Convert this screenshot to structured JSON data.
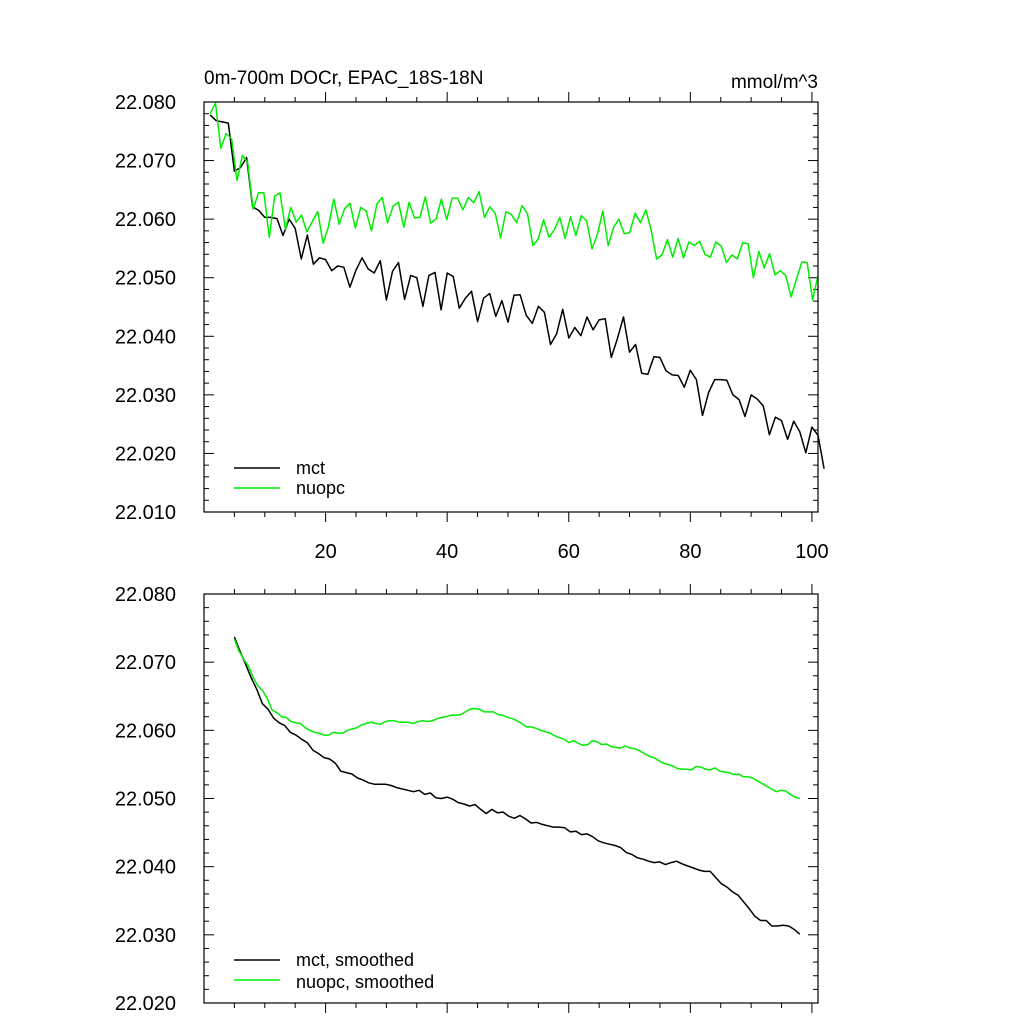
{
  "colors": {
    "mct": "#000000",
    "nuopc": "#00ee00",
    "frame": "#000000",
    "background": "#ffffff"
  },
  "chart_data": [
    {
      "type": "line",
      "title": "0m-700m DOCr, EPAC_18S-18N",
      "units_label": "mmol/m^3",
      "xlabel": "",
      "ylabel": "",
      "xlim": [
        0,
        101
      ],
      "ylim": [
        22.01,
        22.08
      ],
      "y_ticks": [
        22.01,
        22.02,
        22.03,
        22.04,
        22.05,
        22.06,
        22.07,
        22.08
      ],
      "y_tick_labels": [
        "22.010",
        "22.020",
        "22.030",
        "22.040",
        "22.050",
        "22.060",
        "22.070",
        "22.080"
      ],
      "x_ticks": [
        20,
        40,
        60,
        80,
        100
      ],
      "x_tick_labels": [
        "20",
        "40",
        "60",
        "80",
        "100"
      ],
      "legend_position": "bottom-left",
      "series": [
        {
          "name": "mct",
          "color": "#000000",
          "x_start": 1,
          "values": [
            22.0778,
            22.0768,
            22.0766,
            22.0764,
            22.0682,
            22.0688,
            22.0705,
            22.0621,
            22.0615,
            22.0603,
            22.0603,
            22.0601,
            22.0572,
            22.06,
            22.0584,
            22.0532,
            22.0573,
            22.0523,
            22.0534,
            22.0531,
            22.0512,
            22.052,
            22.0518,
            22.0484,
            22.0513,
            22.0534,
            22.0515,
            22.0508,
            22.0529,
            22.0462,
            22.0511,
            22.0526,
            22.0463,
            22.0504,
            22.05,
            22.0451,
            22.0504,
            22.0509,
            22.0445,
            22.0508,
            22.0502,
            22.0448,
            22.0465,
            22.0477,
            22.0425,
            22.0465,
            22.0473,
            22.0434,
            22.0461,
            22.0424,
            22.047,
            22.0471,
            22.0436,
            22.0422,
            22.0451,
            22.0441,
            22.0386,
            22.0404,
            22.0446,
            22.0397,
            22.0415,
            22.0401,
            22.0433,
            22.0411,
            22.0428,
            22.043,
            22.0364,
            22.0396,
            22.0433,
            22.0373,
            22.0386,
            22.0337,
            22.0335,
            22.0365,
            22.0364,
            22.0341,
            22.0334,
            22.0333,
            22.0313,
            22.0342,
            22.0326,
            22.0265,
            22.0304,
            22.0326,
            22.0326,
            22.0325,
            22.03,
            22.0292,
            22.0263,
            22.03,
            22.0293,
            22.0281,
            22.0232,
            22.0262,
            22.0256,
            22.0224,
            22.0255,
            22.0237,
            22.0201,
            22.0245,
            22.0231,
            22.0174
          ]
        },
        {
          "name": "nuopc",
          "color": "#00ee00",
          "x_start": 1,
          "values": [
            22.078,
            22.0798,
            22.0721,
            22.0746,
            22.0737,
            22.0666,
            22.0709,
            22.0697,
            22.0617,
            22.0645,
            22.0645,
            22.0569,
            22.0639,
            22.0645,
            22.0583,
            22.062,
            22.0595,
            22.0607,
            22.0578,
            22.0596,
            22.0613,
            22.0559,
            22.0587,
            22.0634,
            22.0591,
            22.0618,
            22.0627,
            22.0585,
            22.062,
            22.0614,
            22.058,
            22.0626,
            22.0637,
            22.0594,
            22.0622,
            22.0629,
            22.0586,
            22.0629,
            22.0602,
            22.0603,
            22.0638,
            22.0593,
            22.06,
            22.0634,
            22.0599,
            22.0636,
            22.0636,
            22.0616,
            22.0637,
            22.0628,
            22.0647,
            22.0603,
            22.0621,
            22.061,
            22.0568,
            22.0613,
            22.0608,
            22.0594,
            22.0623,
            22.0609,
            22.0555,
            22.0566,
            22.0599,
            22.0569,
            22.0582,
            22.0603,
            22.0567,
            22.0604,
            22.0572,
            22.0606,
            22.0597,
            22.0549,
            22.0574,
            22.0614,
            22.0555,
            22.0586,
            22.06,
            22.0575,
            22.0577,
            22.061,
            22.0594,
            22.0616,
            22.0581,
            22.0532,
            22.0539,
            22.0565,
            22.0535,
            22.0567,
            22.0534,
            22.0561,
            22.0555,
            22.0562,
            22.054,
            22.0535,
            22.0561,
            22.0554,
            22.0526,
            22.0539,
            22.0532,
            22.056,
            22.0558,
            22.05,
            22.0545,
            22.0517,
            22.0541,
            22.0505,
            22.0512,
            22.0504,
            22.0467,
            22.0498,
            22.0527,
            22.0526,
            22.0462,
            22.0504
          ]
        }
      ]
    },
    {
      "type": "line",
      "title": "",
      "xlabel": "",
      "ylabel": "",
      "xlim": [
        0,
        101
      ],
      "ylim": [
        22.02,
        22.08
      ],
      "y_ticks": [
        22.02,
        22.03,
        22.04,
        22.05,
        22.06,
        22.07,
        22.08
      ],
      "y_tick_labels": [
        "22.020",
        "22.030",
        "22.040",
        "22.050",
        "22.060",
        "22.070",
        "22.080"
      ],
      "x_ticks": [
        20,
        40,
        60,
        80,
        100
      ],
      "x_tick_labels": [],
      "legend_position": "bottom-left",
      "series": [
        {
          "name": "mct, smoothed",
          "color": "#000000",
          "x_start": 5,
          "values": [
            22.0737,
            22.0716,
            22.0697,
            22.0677,
            22.066,
            22.0639,
            22.0631,
            22.0618,
            22.0611,
            22.0607,
            22.0597,
            22.0593,
            22.0587,
            22.0582,
            22.0571,
            22.0566,
            22.056,
            22.0558,
            22.0552,
            22.054,
            22.0538,
            22.0536,
            22.053,
            22.0527,
            22.0523,
            22.0521,
            22.0521,
            22.0521,
            22.0519,
            22.0516,
            22.0514,
            22.0512,
            22.051,
            22.0512,
            22.0506,
            22.0508,
            22.0501,
            22.05,
            22.0502,
            22.0499,
            22.0494,
            22.0492,
            22.0489,
            22.0491,
            22.0484,
            22.0478,
            22.0484,
            22.0479,
            22.048,
            22.0474,
            22.0471,
            22.0475,
            22.047,
            22.0464,
            22.0465,
            22.0462,
            22.046,
            22.0458,
            22.0458,
            22.0457,
            22.0451,
            22.0452,
            22.0447,
            22.0448,
            22.0444,
            22.0438,
            22.0435,
            22.0433,
            22.0431,
            22.0428,
            22.0421,
            22.0418,
            22.0413,
            22.0411,
            22.0408,
            22.0406,
            22.0407,
            22.0403,
            22.0406,
            22.0408,
            22.0404,
            22.0401,
            22.0398,
            22.0395,
            22.0393,
            22.0393,
            22.0384,
            22.0375,
            22.037,
            22.0363,
            22.0358,
            22.0348,
            22.0338,
            22.0327,
            22.0321,
            22.0321,
            22.0313,
            22.0313,
            22.0314,
            22.0313,
            22.0308,
            22.0301
          ]
        },
        {
          "name": "nuopc, smoothed",
          "color": "#00ee00",
          "x_start": 5,
          "values": [
            22.0734,
            22.0716,
            22.0704,
            22.0694,
            22.0677,
            22.0665,
            22.0658,
            22.0646,
            22.063,
            22.0626,
            22.062,
            22.0619,
            22.0613,
            22.0611,
            22.061,
            22.0604,
            22.06,
            22.0597,
            22.0596,
            22.0593,
            22.0593,
            22.0597,
            22.0596,
            22.0596,
            22.06,
            22.0602,
            22.0604,
            22.0608,
            22.061,
            22.0612,
            22.061,
            22.0609,
            22.0613,
            22.0614,
            22.0614,
            22.0612,
            22.0612,
            22.0612,
            22.061,
            22.0613,
            22.0614,
            22.0613,
            22.0614,
            22.0617,
            22.0619,
            22.062,
            22.0622,
            22.0622,
            22.0623,
            22.0627,
            22.0631,
            22.0632,
            22.0631,
            22.0627,
            22.0627,
            22.0627,
            22.0623,
            22.0622,
            22.0619,
            22.0617,
            22.0614,
            22.061,
            22.0605,
            22.0605,
            22.0603,
            22.06,
            22.0598,
            22.0596,
            22.0592,
            22.0589,
            22.0587,
            22.0582,
            22.0585,
            22.0581,
            22.0578,
            22.0579,
            22.0585,
            22.0583,
            22.0579,
            22.058,
            22.0576,
            22.0575,
            22.0574,
            22.0577,
            22.0574,
            22.0573,
            22.057,
            22.0566,
            22.0562,
            22.056,
            22.0556,
            22.0552,
            22.055,
            22.0548,
            22.0544,
            22.0543,
            22.0543,
            22.0542,
            22.0547,
            22.0546,
            22.0543,
            22.0542,
            22.0545,
            22.054,
            22.0539,
            22.0538,
            22.0535,
            22.0536,
            22.0532,
            22.0532,
            22.053,
            22.0526,
            22.0522,
            22.0518,
            22.0514,
            22.051,
            22.0512,
            22.0511,
            22.0506,
            22.0502,
            22.05
          ]
        }
      ]
    }
  ]
}
